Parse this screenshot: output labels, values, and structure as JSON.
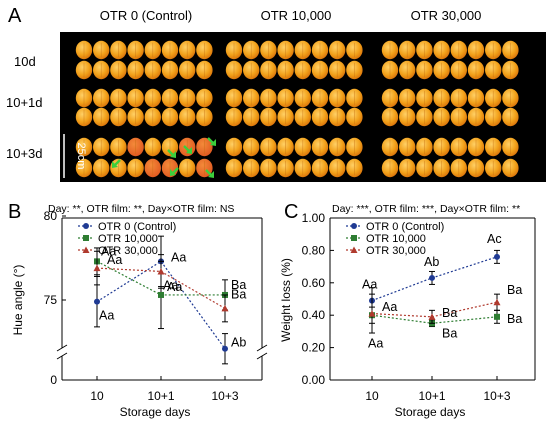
{
  "panel_a": {
    "label": "A",
    "columns": [
      "OTR 0 (Control)",
      "OTR 10,000",
      "OTR 30,000"
    ],
    "rows": [
      "10d",
      "10+1d",
      "10+3d"
    ],
    "scale_bar_label": "25cm",
    "colors": {
      "background": "#000000",
      "fruit": "#f2a11a",
      "fruit_light": "#ffd066",
      "fruit_dark": "#d8700a",
      "decay_fruit": "#e0581f",
      "arrow": "#3ccf3c",
      "scale": "#ffffff"
    }
  },
  "chart_data": [
    {
      "panel_label": "B",
      "type": "line",
      "header": "Day: **, OTR film: **, Day×OTR film: NS",
      "xlabel": "Storage days",
      "ylabel": "Hue angle (°)",
      "categories": [
        "10",
        "10+1",
        "10+3"
      ],
      "y_ticks": [
        "0",
        "75",
        "80"
      ],
      "y_axis_break": true,
      "ylim": [
        0,
        80
      ],
      "grid": false,
      "legend_placement": "top-left",
      "series": [
        {
          "name": "OTR 0 (Control)",
          "color": "#1f3a93",
          "marker": "circle",
          "values": [
            74.9,
            77.3,
            72.1
          ],
          "errors": [
            1.5,
            1.5,
            0.9
          ],
          "labels": [
            "Aa",
            "Aa",
            "Ab"
          ]
        },
        {
          "name": "OTR 10,000",
          "color": "#2e7d32",
          "marker": "square",
          "values": [
            77.3,
            75.3,
            75.3
          ],
          "errors": [
            0.8,
            2.0,
            0.9
          ],
          "labels": [
            "Aa",
            "Aa",
            "Ba"
          ]
        },
        {
          "name": "OTR 30,000",
          "color": "#b03a2e",
          "marker": "triangle",
          "values": [
            76.9,
            76.7,
            74.5
          ],
          "errors": [
            1.0,
            1.0,
            0.8
          ],
          "labels": [
            "Aa",
            "Aa",
            "Ba"
          ]
        }
      ]
    },
    {
      "panel_label": "C",
      "type": "line",
      "header": "Day: ***, OTR film: ***, Day×OTR film: **",
      "xlabel": "Storage days",
      "ylabel": "Weight loss (%)",
      "categories": [
        "10",
        "10+1",
        "10+3"
      ],
      "y_ticks": [
        "0.00",
        "0.20",
        "0.40",
        "0.60",
        "0.80",
        "1.00"
      ],
      "ylim": [
        0,
        1.0
      ],
      "grid": false,
      "legend_placement": "top-left",
      "series": [
        {
          "name": "OTR 0 (Control)",
          "color": "#1f3a93",
          "marker": "circle",
          "values": [
            0.49,
            0.63,
            0.76
          ],
          "errors": [
            0.08,
            0.04,
            0.04
          ],
          "labels": [
            "Aa",
            "Ab",
            "Ac"
          ]
        },
        {
          "name": "OTR 10,000",
          "color": "#2e7d32",
          "marker": "square",
          "values": [
            0.4,
            0.35,
            0.39
          ],
          "errors": [
            0.05,
            0.02,
            0.04
          ],
          "labels": [
            "Aa",
            "Ba",
            "Ba"
          ]
        },
        {
          "name": "OTR 30,000",
          "color": "#b03a2e",
          "marker": "triangle",
          "values": [
            0.41,
            0.39,
            0.48
          ],
          "errors": [
            0.12,
            0.04,
            0.05
          ],
          "labels": [
            "Aa",
            "Ba",
            "Ba"
          ]
        }
      ]
    }
  ]
}
